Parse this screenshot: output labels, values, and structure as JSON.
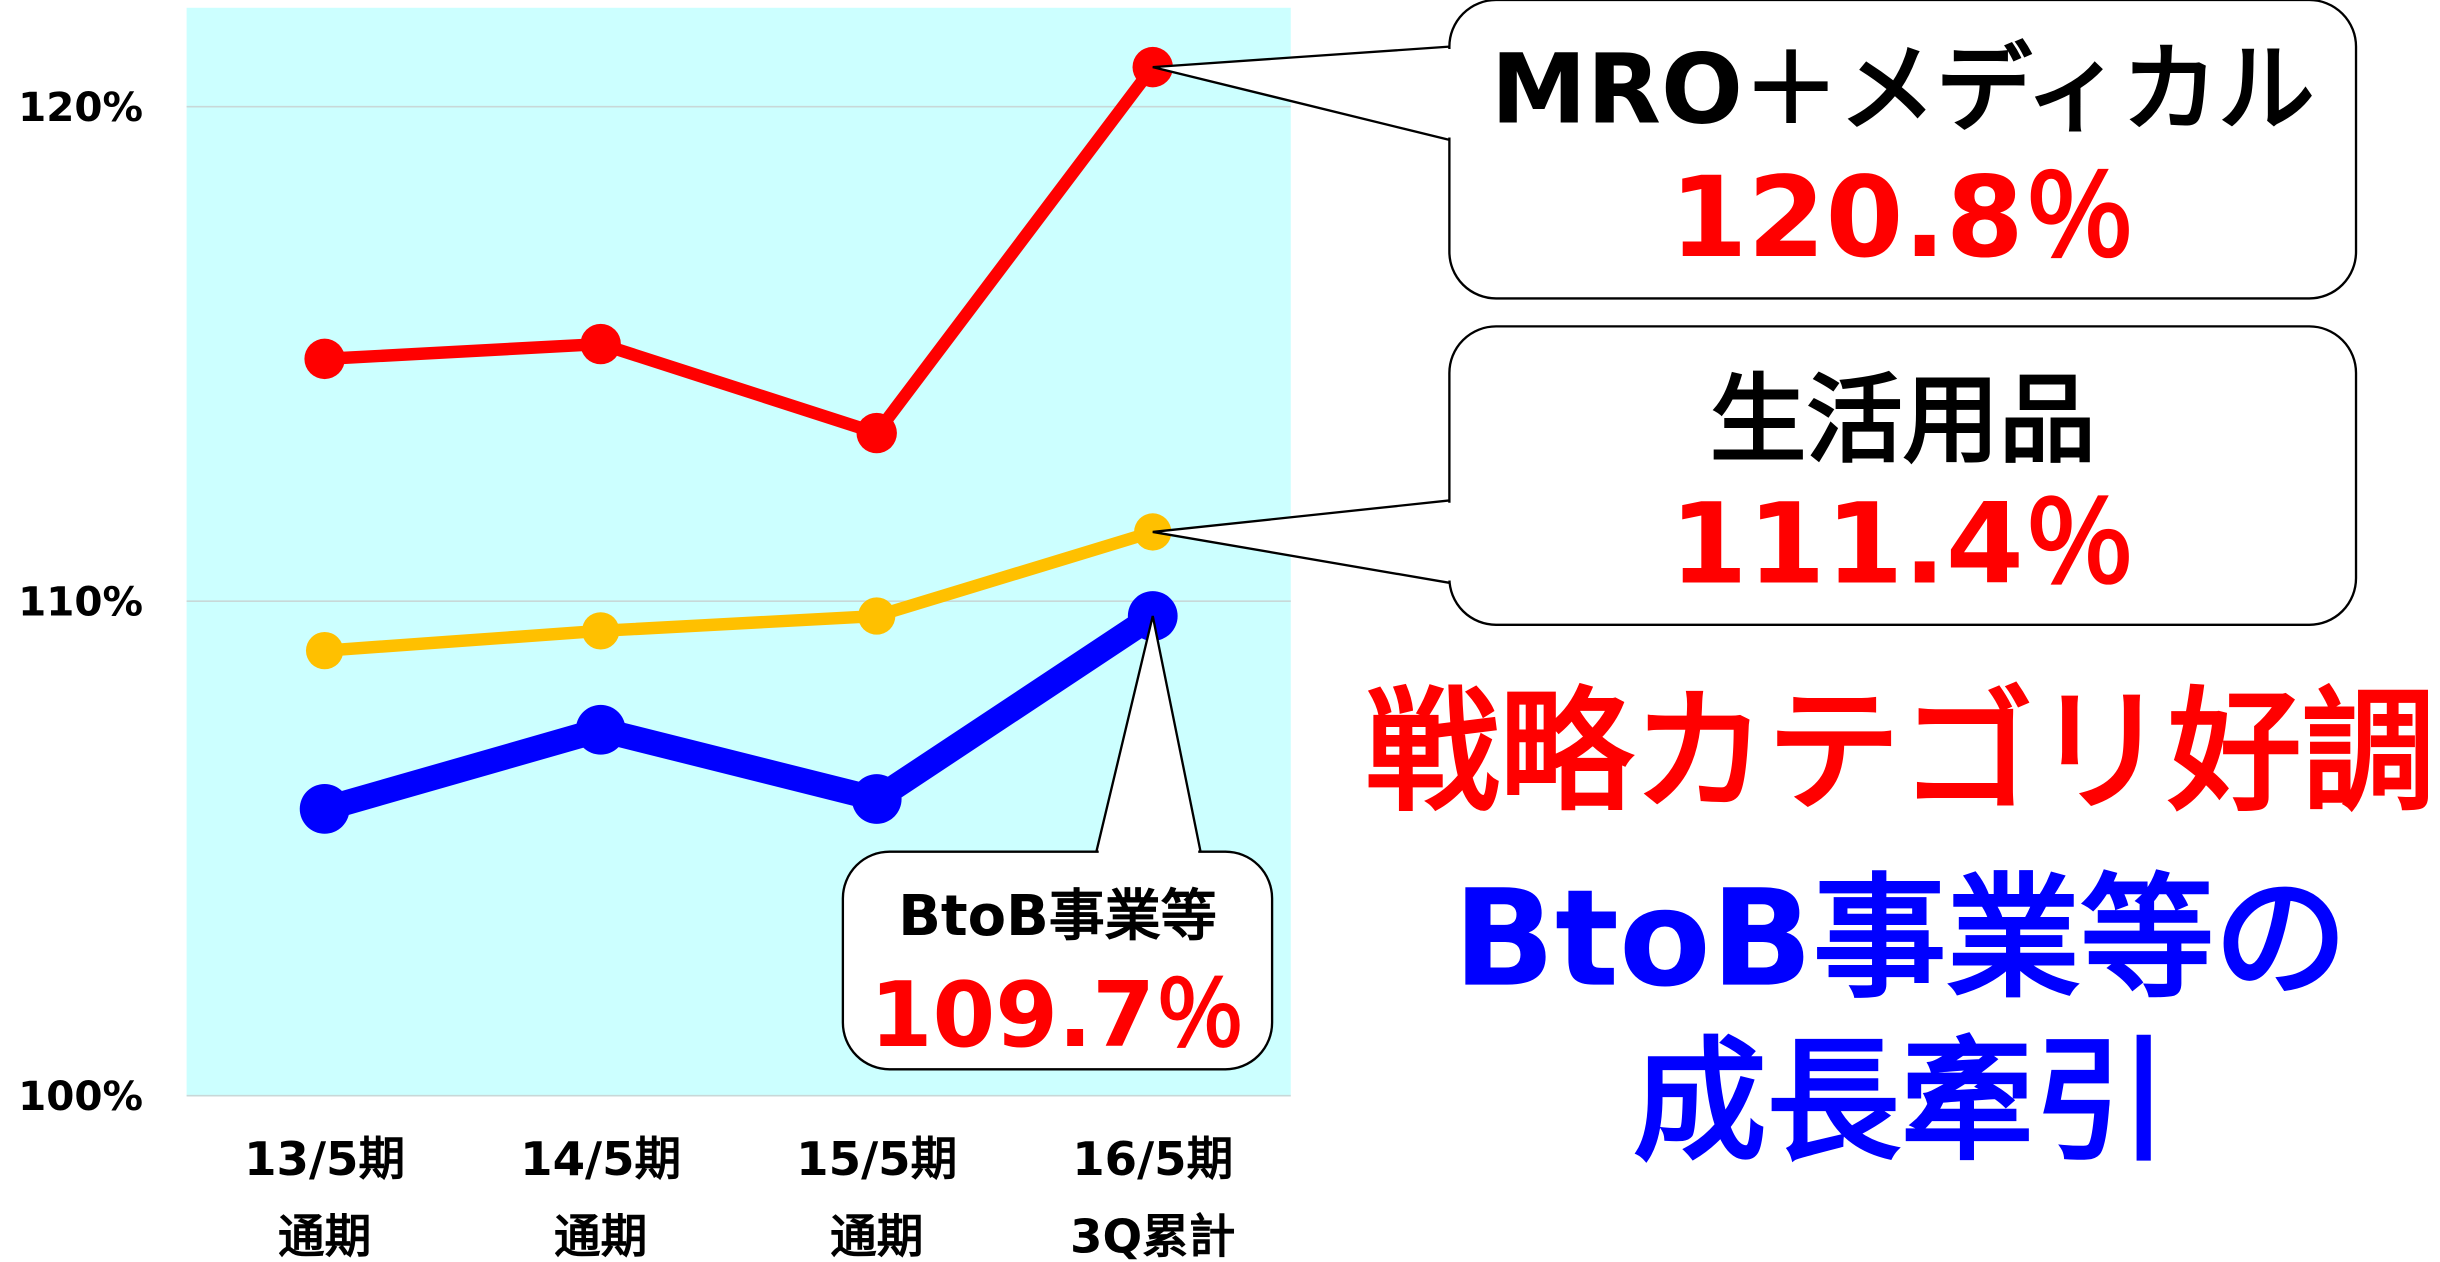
{
  "chart_data": {
    "type": "line",
    "categories": [
      [
        "13/5期",
        "通期"
      ],
      [
        "14/5期",
        "通期"
      ],
      [
        "15/5期",
        "通期"
      ],
      [
        "16/5期",
        "3Q累計"
      ]
    ],
    "series": [
      {
        "name": "MRO＋メディカル",
        "color": "#ff0000",
        "values": [
          114.9,
          115.2,
          113.4,
          120.8
        ],
        "value_labels": [
          null,
          null,
          null,
          "120.8％"
        ]
      },
      {
        "name": "生活用品",
        "color": "#ffc000",
        "values": [
          109.0,
          109.4,
          109.7,
          111.4
        ],
        "value_labels": [
          null,
          null,
          null,
          "111.4％"
        ]
      },
      {
        "name": "BtoB事業等",
        "color": "#0000ff",
        "values": [
          105.8,
          107.4,
          106.0,
          109.7
        ],
        "value_labels": [
          null,
          null,
          null,
          "109.7％"
        ]
      }
    ],
    "ylim": [
      100,
      122
    ],
    "yticks": [
      {
        "value": 100,
        "label": "100%"
      },
      {
        "value": 110,
        "label": "110%"
      },
      {
        "value": 120,
        "label": "120%"
      }
    ],
    "grid": true,
    "plot_background": "#ccffff",
    "annotations": [
      {
        "text": "戦略カテゴリ好調",
        "color": "#ff0000"
      },
      {
        "text": "BtoB事業等の",
        "color": "#0000ff"
      },
      {
        "text": "成長牽引",
        "color": "#0000ff"
      }
    ]
  }
}
